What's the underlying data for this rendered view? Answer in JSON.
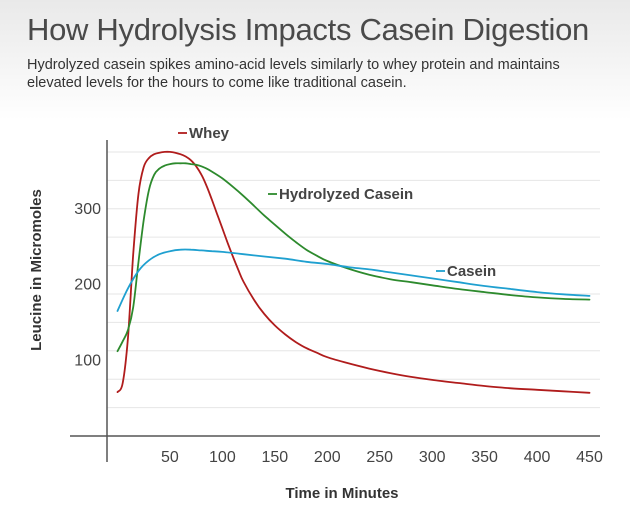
{
  "header": {
    "title": "How Hydrolysis Impacts Casein Digestion",
    "subtitle": "Hydrolyzed casein spikes amino-acid levels similarly to whey protein and maintains elevated levels for the hours to come like traditional casein."
  },
  "chart_data": {
    "type": "line",
    "title": "How Hydrolysis Impacts Casein Digestion",
    "subtitle": "Hydrolyzed casein spikes amino-acid levels similarly to whey protein and maintains elevated levels for the hours to come like traditional casein.",
    "xlabel": "Time in Minutes",
    "ylabel": "Leucine in Micromoles",
    "xlim": [
      -10,
      460
    ],
    "ylim": [
      0,
      400
    ],
    "x_ticks": [
      50,
      100,
      150,
      200,
      250,
      300,
      350,
      400,
      450
    ],
    "y_ticks": [
      100,
      200,
      300
    ],
    "grid": true,
    "legend": "labels placed next to lines",
    "series": [
      {
        "name": "Whey",
        "color": "#b01c1c",
        "x": [
          0,
          5,
          10,
          15,
          20,
          25,
          30,
          35,
          40,
          45,
          50,
          55,
          60,
          65,
          70,
          75,
          80,
          85,
          90,
          95,
          100,
          105,
          110,
          115,
          120,
          130,
          140,
          150,
          160,
          170,
          180,
          190,
          200,
          220,
          240,
          260,
          280,
          300,
          325,
          350,
          375,
          400,
          425,
          450
        ],
        "values": [
          58,
          70,
          130,
          240,
          320,
          355,
          367,
          372,
          374,
          375,
          375,
          374,
          372,
          369,
          364,
          356,
          345,
          330,
          312,
          293,
          274,
          255,
          237,
          220,
          204,
          180,
          161,
          146,
          134,
          124,
          116,
          110,
          104,
          96,
          89,
          83,
          78,
          74,
          70,
          66,
          63,
          61,
          59,
          57
        ]
      },
      {
        "name": "Hydrolyzed Casein",
        "color": "#2d8a2d",
        "x": [
          0,
          5,
          10,
          15,
          20,
          25,
          30,
          35,
          40,
          45,
          50,
          55,
          60,
          65,
          70,
          75,
          80,
          85,
          90,
          100,
          110,
          120,
          130,
          140,
          150,
          160,
          170,
          180,
          190,
          200,
          220,
          240,
          260,
          280,
          300,
          325,
          350,
          375,
          400,
          425,
          450
        ],
        "values": [
          112,
          125,
          140,
          170,
          230,
          285,
          325,
          345,
          353,
          357,
          359,
          360,
          360,
          360,
          359,
          358,
          356,
          353,
          349,
          340,
          329,
          317,
          304,
          291,
          279,
          267,
          256,
          246,
          238,
          231,
          221,
          213,
          207,
          203,
          199,
          194,
          190,
          186,
          183,
          181,
          180
        ]
      },
      {
        "name": "Casein",
        "color": "#1fa0d0",
        "x": [
          0,
          10,
          20,
          30,
          40,
          50,
          60,
          70,
          80,
          90,
          100,
          120,
          140,
          160,
          180,
          200,
          220,
          240,
          260,
          280,
          300,
          325,
          350,
          375,
          400,
          425,
          450
        ],
        "values": [
          165,
          195,
          218,
          232,
          240,
          244,
          246,
          246,
          245,
          244,
          243,
          240,
          237,
          234,
          230,
          227,
          223,
          220,
          216,
          212,
          208,
          203,
          198,
          194,
          190,
          187,
          185
        ]
      }
    ]
  }
}
